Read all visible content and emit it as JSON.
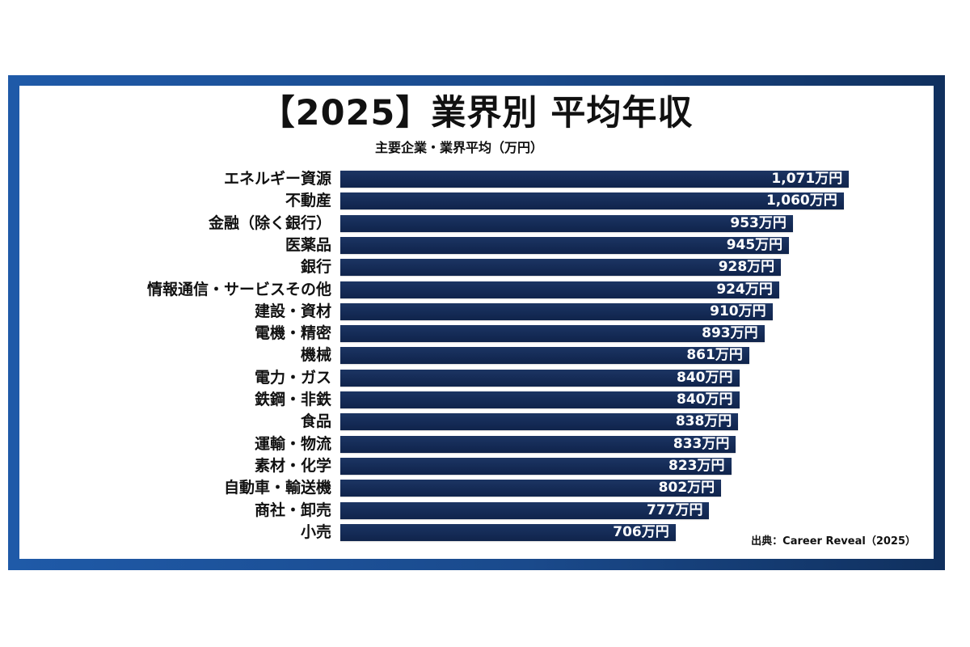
{
  "header": {
    "title": "【2025】業界別 平均年収",
    "subtitle": "主要企業・業界平均（万円）"
  },
  "footer": {
    "source": "出典：Career Reveal（2025）"
  },
  "colors": {
    "bar": "#142a55",
    "frame_left": "#1f5aa8",
    "frame_right": "#10305e",
    "text": "#111111",
    "bar_text": "#ffffff"
  },
  "chart_data": {
    "type": "bar",
    "orientation": "horizontal",
    "title": "【2025】業界別 平均年収",
    "subtitle": "主要企業・業界平均（万円）",
    "xlabel": "",
    "ylabel": "",
    "unit": "万円",
    "grid": false,
    "legend": null,
    "source": "出典：Career Reveal（2025）",
    "categories": [
      "エネルギー資源",
      "不動産",
      "金融（除く銀行）",
      "医薬品",
      "銀行",
      "情報通信・サービスその他",
      "建設・資材",
      "電機・精密",
      "機械",
      "電力・ガス",
      "鉄鋼・非鉄",
      "食品",
      "運輸・物流",
      "素材・化学",
      "自動車・輸送機",
      "商社・卸売",
      "小売"
    ],
    "values": [
      1071,
      1060,
      953,
      945,
      928,
      924,
      910,
      893,
      861,
      840,
      840,
      838,
      833,
      823,
      802,
      777,
      706
    ],
    "value_labels": [
      "1,071万円",
      "1,060万円",
      "953万円",
      "945万円",
      "928万円",
      "924万円",
      "910万円",
      "893万円",
      "861万円",
      "840万円",
      "840万円",
      "838万円",
      "833万円",
      "823万円",
      "802万円",
      "777万円",
      "706万円"
    ]
  }
}
